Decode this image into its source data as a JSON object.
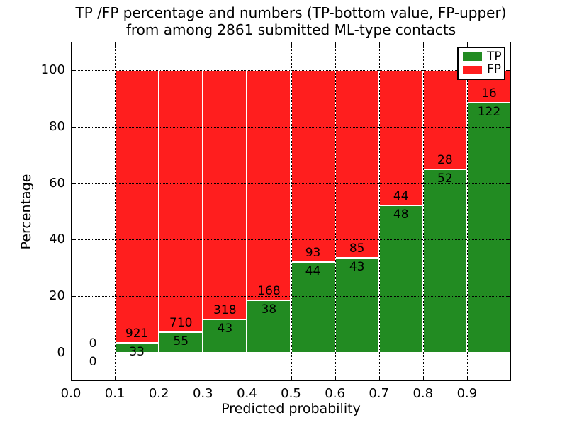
{
  "chart_data": {
    "type": "bar",
    "stacked": true,
    "title_lines": [
      "TP /FP percentage and numbers (TP-bottom value, FP-upper)",
      "from among 2861 submitted ML-type contacts"
    ],
    "xlabel": "Predicted probability",
    "ylabel": "Percentage",
    "xlim": [
      0.0,
      1.0
    ],
    "ylim": [
      -10,
      110
    ],
    "grid": "dotted-black-above-bars",
    "legend_position": "upper right",
    "bar_edge_color": "#ffffff",
    "bin_width": 0.1,
    "bin_starts": [
      0.0,
      0.1,
      0.2,
      0.3,
      0.4,
      0.5,
      0.6,
      0.7,
      0.8,
      0.9
    ],
    "xtick_labels": [
      "0.0",
      "0.1",
      "0.2",
      "0.3",
      "0.4",
      "0.5",
      "0.6",
      "0.7",
      "0.8",
      "0.9"
    ],
    "ytick_values": [
      0,
      20,
      40,
      60,
      80,
      100
    ],
    "series": [
      {
        "name": "TP",
        "color": "#228B22",
        "position": "bottom",
        "counts": [
          0,
          33,
          55,
          43,
          38,
          44,
          43,
          48,
          52,
          122
        ]
      },
      {
        "name": "FP",
        "color": "#FF1E1E",
        "position": "top",
        "counts": [
          0,
          921,
          710,
          318,
          168,
          93,
          85,
          44,
          28,
          16
        ]
      }
    ],
    "tp_percent": [
      0.0,
      3.46,
      7.19,
      11.91,
      18.45,
      32.12,
      33.59,
      52.17,
      65.0,
      88.41
    ],
    "total_contacts": "2861"
  }
}
